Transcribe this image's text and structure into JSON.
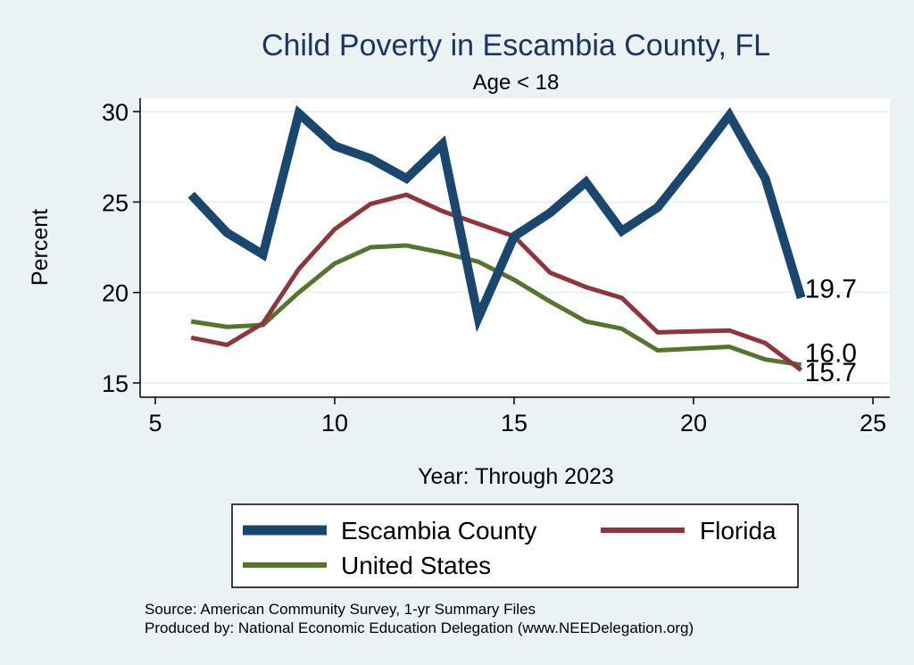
{
  "chart_data": {
    "type": "line",
    "title": "Child Poverty in Escambia County, FL",
    "subtitle": "Age < 18",
    "xlabel": "Year: Through 2023",
    "ylabel": "Percent",
    "xlim": [
      5,
      25
    ],
    "ylim": [
      15,
      30
    ],
    "xticks": [
      5,
      10,
      15,
      20,
      25
    ],
    "yticks": [
      15,
      20,
      25,
      30
    ],
    "grid": true,
    "legend_position": "bottom",
    "x": [
      6,
      7,
      8,
      9,
      10,
      11,
      12,
      13,
      14,
      15,
      16,
      17,
      18,
      19,
      21,
      22,
      23
    ],
    "series": [
      {
        "name": "Escambia County",
        "color": "#1a476f",
        "x": [
          6,
          7,
          8,
          9,
          10,
          11,
          12,
          13,
          14,
          15,
          16,
          17,
          18,
          19,
          20,
          21,
          22,
          23
        ],
        "values": [
          25.4,
          23.3,
          22.1,
          29.9,
          28.1,
          27.4,
          26.3,
          28.2,
          18.6,
          23.1,
          24.4,
          26.1,
          23.4,
          24.7,
          27.2,
          29.8,
          26.3,
          19.7
        ],
        "end_label": "19.7"
      },
      {
        "name": "Florida",
        "color": "#90353b",
        "x": [
          6,
          7,
          8,
          9,
          10,
          11,
          12,
          13,
          14,
          15,
          16,
          17,
          18,
          19,
          21,
          22,
          23
        ],
        "values": [
          17.5,
          17.1,
          18.3,
          21.3,
          23.5,
          24.9,
          25.4,
          24.5,
          23.8,
          23.1,
          21.1,
          20.3,
          19.7,
          17.8,
          17.9,
          17.2,
          15.7
        ],
        "end_label": "15.7"
      },
      {
        "name": "United States",
        "color": "#55752f",
        "x": [
          6,
          7,
          8,
          9,
          10,
          11,
          12,
          13,
          14,
          15,
          16,
          17,
          18,
          19,
          21,
          22,
          23
        ],
        "values": [
          18.4,
          18.1,
          18.2,
          20.0,
          21.6,
          22.5,
          22.6,
          22.2,
          21.7,
          20.7,
          19.5,
          18.4,
          18.0,
          16.8,
          17.0,
          16.3,
          16.0
        ],
        "end_label": "16.0"
      }
    ],
    "notes": [
      "Source: American Community Survey, 1-yr Summary Files",
      "Produced by: National Economic Education Delegation (www.NEEDelegation.org)"
    ]
  }
}
